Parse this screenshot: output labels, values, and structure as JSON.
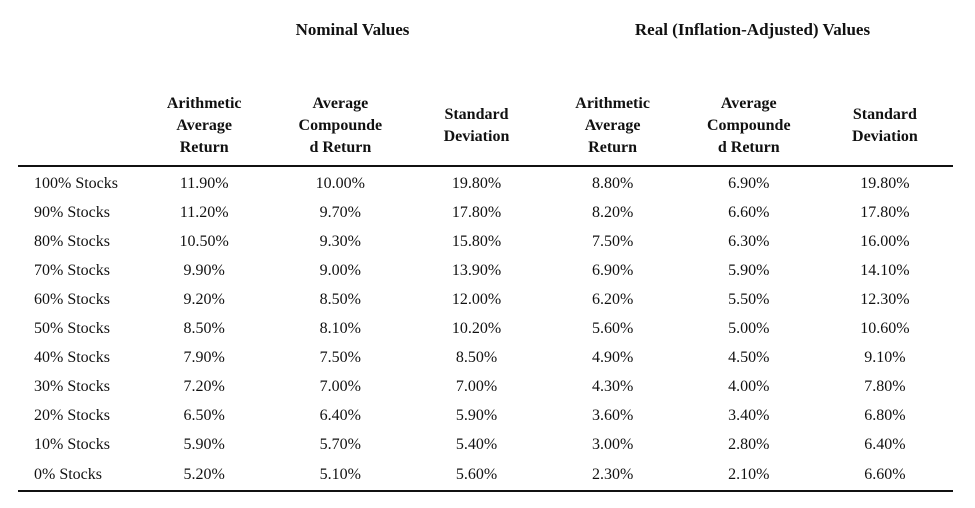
{
  "group_titles": {
    "nominal": "Nominal Values",
    "real": "Real (Inflation-Adjusted) Values"
  },
  "column_headers": [
    [
      "Arithmetic",
      "Average",
      "Return"
    ],
    [
      "Average",
      "Compounde",
      "d Return"
    ],
    [
      "Standard",
      "Deviation"
    ],
    [
      "Arithmetic",
      "Average",
      "Return"
    ],
    [
      "Average",
      "Compounde",
      "d Return"
    ],
    [
      "Standard",
      "Deviation"
    ]
  ],
  "rows": [
    {
      "label": "100% Stocks",
      "values": [
        "11.90%",
        "10.00%",
        "19.80%",
        "8.80%",
        "6.90%",
        "19.80%"
      ]
    },
    {
      "label": "90% Stocks",
      "values": [
        "11.20%",
        "9.70%",
        "17.80%",
        "8.20%",
        "6.60%",
        "17.80%"
      ]
    },
    {
      "label": "80% Stocks",
      "values": [
        "10.50%",
        "9.30%",
        "15.80%",
        "7.50%",
        "6.30%",
        "16.00%"
      ]
    },
    {
      "label": "70% Stocks",
      "values": [
        "9.90%",
        "9.00%",
        "13.90%",
        "6.90%",
        "5.90%",
        "14.10%"
      ]
    },
    {
      "label": "60% Stocks",
      "values": [
        "9.20%",
        "8.50%",
        "12.00%",
        "6.20%",
        "5.50%",
        "12.30%"
      ]
    },
    {
      "label": "50% Stocks",
      "values": [
        "8.50%",
        "8.10%",
        "10.20%",
        "5.60%",
        "5.00%",
        "10.60%"
      ]
    },
    {
      "label": "40% Stocks",
      "values": [
        "7.90%",
        "7.50%",
        "8.50%",
        "4.90%",
        "4.50%",
        "9.10%"
      ]
    },
    {
      "label": "30% Stocks",
      "values": [
        "7.20%",
        "7.00%",
        "7.00%",
        "4.30%",
        "4.00%",
        "7.80%"
      ]
    },
    {
      "label": "20% Stocks",
      "values": [
        "6.50%",
        "6.40%",
        "5.90%",
        "3.60%",
        "3.40%",
        "6.80%"
      ]
    },
    {
      "label": "10% Stocks",
      "values": [
        "5.90%",
        "5.70%",
        "5.40%",
        "3.00%",
        "2.80%",
        "6.40%"
      ]
    },
    {
      "label": "0% Stocks",
      "values": [
        "5.20%",
        "5.10%",
        "5.60%",
        "2.30%",
        "2.10%",
        "6.60%"
      ]
    }
  ]
}
